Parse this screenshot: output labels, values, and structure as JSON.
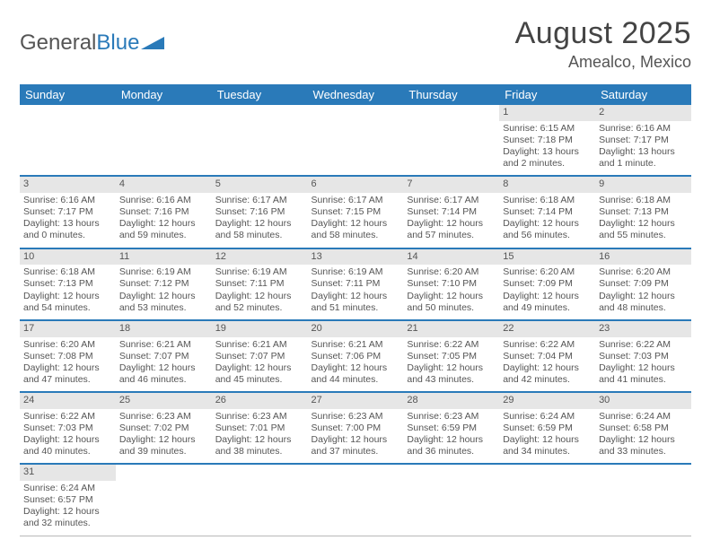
{
  "logo": {
    "part1": "General",
    "part2": "Blue"
  },
  "title": "August 2025",
  "location": "Amealco, Mexico",
  "colors": {
    "header_bg": "#2a7ab9",
    "header_fg": "#ffffff",
    "daynum_bg": "#e6e6e6",
    "text": "#555555",
    "week_sep": "#2a7ab9",
    "cell_border": "#b8b8b8"
  },
  "day_headers": [
    "Sunday",
    "Monday",
    "Tuesday",
    "Wednesday",
    "Thursday",
    "Friday",
    "Saturday"
  ],
  "weeks": [
    {
      "nums": [
        "",
        "",
        "",
        "",
        "",
        "1",
        "2"
      ],
      "cells": [
        "",
        "",
        "",
        "",
        "",
        "Sunrise: 6:15 AM\nSunset: 7:18 PM\nDaylight: 13 hours and 2 minutes.",
        "Sunrise: 6:16 AM\nSunset: 7:17 PM\nDaylight: 13 hours and 1 minute."
      ]
    },
    {
      "nums": [
        "3",
        "4",
        "5",
        "6",
        "7",
        "8",
        "9"
      ],
      "cells": [
        "Sunrise: 6:16 AM\nSunset: 7:17 PM\nDaylight: 13 hours and 0 minutes.",
        "Sunrise: 6:16 AM\nSunset: 7:16 PM\nDaylight: 12 hours and 59 minutes.",
        "Sunrise: 6:17 AM\nSunset: 7:16 PM\nDaylight: 12 hours and 58 minutes.",
        "Sunrise: 6:17 AM\nSunset: 7:15 PM\nDaylight: 12 hours and 58 minutes.",
        "Sunrise: 6:17 AM\nSunset: 7:14 PM\nDaylight: 12 hours and 57 minutes.",
        "Sunrise: 6:18 AM\nSunset: 7:14 PM\nDaylight: 12 hours and 56 minutes.",
        "Sunrise: 6:18 AM\nSunset: 7:13 PM\nDaylight: 12 hours and 55 minutes."
      ]
    },
    {
      "nums": [
        "10",
        "11",
        "12",
        "13",
        "14",
        "15",
        "16"
      ],
      "cells": [
        "Sunrise: 6:18 AM\nSunset: 7:13 PM\nDaylight: 12 hours and 54 minutes.",
        "Sunrise: 6:19 AM\nSunset: 7:12 PM\nDaylight: 12 hours and 53 minutes.",
        "Sunrise: 6:19 AM\nSunset: 7:11 PM\nDaylight: 12 hours and 52 minutes.",
        "Sunrise: 6:19 AM\nSunset: 7:11 PM\nDaylight: 12 hours and 51 minutes.",
        "Sunrise: 6:20 AM\nSunset: 7:10 PM\nDaylight: 12 hours and 50 minutes.",
        "Sunrise: 6:20 AM\nSunset: 7:09 PM\nDaylight: 12 hours and 49 minutes.",
        "Sunrise: 6:20 AM\nSunset: 7:09 PM\nDaylight: 12 hours and 48 minutes."
      ]
    },
    {
      "nums": [
        "17",
        "18",
        "19",
        "20",
        "21",
        "22",
        "23"
      ],
      "cells": [
        "Sunrise: 6:20 AM\nSunset: 7:08 PM\nDaylight: 12 hours and 47 minutes.",
        "Sunrise: 6:21 AM\nSunset: 7:07 PM\nDaylight: 12 hours and 46 minutes.",
        "Sunrise: 6:21 AM\nSunset: 7:07 PM\nDaylight: 12 hours and 45 minutes.",
        "Sunrise: 6:21 AM\nSunset: 7:06 PM\nDaylight: 12 hours and 44 minutes.",
        "Sunrise: 6:22 AM\nSunset: 7:05 PM\nDaylight: 12 hours and 43 minutes.",
        "Sunrise: 6:22 AM\nSunset: 7:04 PM\nDaylight: 12 hours and 42 minutes.",
        "Sunrise: 6:22 AM\nSunset: 7:03 PM\nDaylight: 12 hours and 41 minutes."
      ]
    },
    {
      "nums": [
        "24",
        "25",
        "26",
        "27",
        "28",
        "29",
        "30"
      ],
      "cells": [
        "Sunrise: 6:22 AM\nSunset: 7:03 PM\nDaylight: 12 hours and 40 minutes.",
        "Sunrise: 6:23 AM\nSunset: 7:02 PM\nDaylight: 12 hours and 39 minutes.",
        "Sunrise: 6:23 AM\nSunset: 7:01 PM\nDaylight: 12 hours and 38 minutes.",
        "Sunrise: 6:23 AM\nSunset: 7:00 PM\nDaylight: 12 hours and 37 minutes.",
        "Sunrise: 6:23 AM\nSunset: 6:59 PM\nDaylight: 12 hours and 36 minutes.",
        "Sunrise: 6:24 AM\nSunset: 6:59 PM\nDaylight: 12 hours and 34 minutes.",
        "Sunrise: 6:24 AM\nSunset: 6:58 PM\nDaylight: 12 hours and 33 minutes."
      ]
    },
    {
      "nums": [
        "31",
        "",
        "",
        "",
        "",
        "",
        ""
      ],
      "cells": [
        "Sunrise: 6:24 AM\nSunset: 6:57 PM\nDaylight: 12 hours and 32 minutes.",
        "",
        "",
        "",
        "",
        "",
        ""
      ]
    }
  ]
}
